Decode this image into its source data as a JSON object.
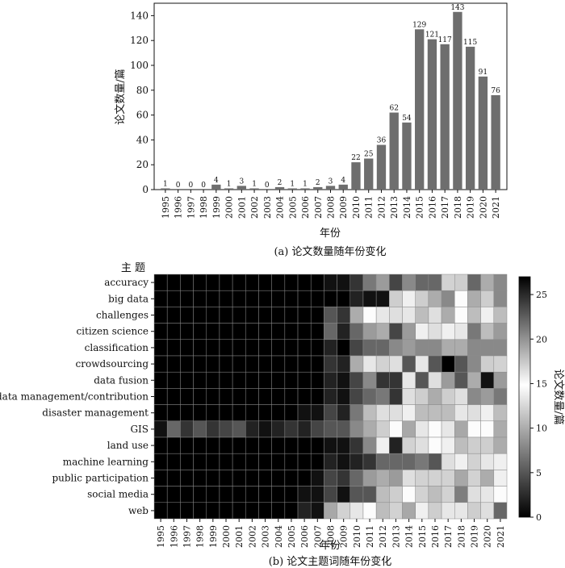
{
  "chart_data": [
    {
      "type": "bar",
      "title": "(a) 论文数量随年份变化",
      "xlabel": "年份",
      "ylabel": "论文数量/篇",
      "ylim": [
        0,
        150
      ],
      "yticks": [
        0,
        20,
        40,
        60,
        80,
        100,
        120,
        140
      ],
      "categories": [
        "1995",
        "1996",
        "1997",
        "1998",
        "1999",
        "2000",
        "2001",
        "2002",
        "2003",
        "2004",
        "2005",
        "2006",
        "2007",
        "2008",
        "2009",
        "2010",
        "2011",
        "2012",
        "2013",
        "2014",
        "2015",
        "2016",
        "2017",
        "2018",
        "2019",
        "2020",
        "2021"
      ],
      "values": [
        1,
        0,
        0,
        0,
        4,
        1,
        3,
        1,
        0,
        2,
        1,
        1,
        2,
        3,
        4,
        22,
        25,
        36,
        62,
        54,
        129,
        121,
        117,
        143,
        115,
        91,
        76
      ],
      "bar_color": "#6e6e6e"
    },
    {
      "type": "heatmap",
      "title": "(b) 论文主题词随年份变化",
      "xlabel": "年份",
      "row_header": "主 题",
      "colorbar_label": "论文数量/篇",
      "value_range": [
        0,
        27
      ],
      "colorbar_ticks": [
        0,
        5,
        10,
        15,
        20,
        25
      ],
      "colormap": "gray",
      "x": [
        "1995",
        "1996",
        "1997",
        "1998",
        "1999",
        "2000",
        "2001",
        "2002",
        "2003",
        "2004",
        "2005",
        "2006",
        "2007",
        "2008",
        "2009",
        "2010",
        "2011",
        "2012",
        "2013",
        "2014",
        "2015",
        "2016",
        "2017",
        "2018",
        "2019",
        "2020",
        "2021"
      ],
      "rows": [
        "accuracy",
        "big data",
        "challenges",
        "citizen science",
        "classification",
        "crowdsourcing",
        "data fusion",
        "data management/contribution",
        "disaster management",
        "GIS",
        "land use",
        "machine learning",
        "public participation",
        "social media",
        "web"
      ],
      "values": [
        [
          0,
          0,
          0,
          0,
          0,
          0,
          0,
          0,
          0,
          0,
          0,
          0,
          0,
          1,
          1,
          3,
          7,
          9,
          4,
          8,
          6,
          6,
          17,
          12,
          6,
          10,
          8
        ],
        [
          0,
          0,
          0,
          0,
          0,
          0,
          0,
          0,
          0,
          0,
          0,
          0,
          0,
          0,
          0,
          2,
          1,
          1,
          12,
          14,
          12,
          10,
          8,
          15,
          10,
          12,
          8
        ],
        [
          0,
          0,
          0,
          0,
          0,
          0,
          0,
          0,
          0,
          0,
          0,
          0,
          0,
          5,
          3,
          10,
          15,
          16,
          13,
          16,
          18,
          13,
          10,
          15,
          18,
          14,
          18
        ],
        [
          0,
          0,
          0,
          0,
          0,
          0,
          0,
          0,
          0,
          0,
          0,
          0,
          0,
          6,
          2,
          6,
          9,
          10,
          4,
          9,
          14,
          13,
          14,
          16,
          7,
          11,
          9
        ],
        [
          0,
          0,
          0,
          0,
          0,
          0,
          0,
          0,
          0,
          0,
          0,
          0,
          0,
          2,
          0,
          4,
          6,
          6,
          8,
          9,
          8,
          8,
          10,
          10,
          8,
          8,
          8
        ],
        [
          0,
          0,
          0,
          0,
          0,
          0,
          0,
          0,
          0,
          0,
          0,
          0,
          0,
          3,
          2,
          10,
          16,
          17,
          13,
          5,
          16,
          5,
          0,
          5,
          8,
          12,
          17
        ],
        [
          0,
          0,
          0,
          0,
          0,
          0,
          0,
          0,
          0,
          0,
          0,
          0,
          0,
          2,
          1,
          4,
          8,
          3,
          3,
          16,
          5,
          13,
          9,
          5,
          10,
          1,
          9
        ],
        [
          0,
          0,
          0,
          0,
          0,
          0,
          0,
          0,
          0,
          0,
          0,
          0,
          0,
          2,
          1,
          4,
          6,
          7,
          3,
          13,
          12,
          10,
          12,
          13,
          8,
          9,
          7
        ],
        [
          0,
          0,
          0,
          0,
          0,
          0,
          0,
          0,
          0,
          0,
          0,
          1,
          1,
          4,
          2,
          7,
          11,
          13,
          13,
          14,
          18,
          18,
          18,
          16,
          13,
          14,
          11
        ],
        [
          1,
          6,
          3,
          5,
          3,
          4,
          5,
          2,
          1,
          2,
          3,
          2,
          4,
          5,
          5,
          8,
          10,
          12,
          15,
          19,
          16,
          15,
          16,
          19,
          15,
          15,
          10
        ],
        [
          0,
          0,
          0,
          0,
          0,
          0,
          0,
          0,
          0,
          0,
          0,
          0,
          0,
          1,
          1,
          3,
          8,
          14,
          2,
          17,
          13,
          15,
          14,
          11,
          12,
          12,
          10
        ],
        [
          0,
          0,
          0,
          0,
          0,
          0,
          0,
          0,
          0,
          0,
          0,
          0,
          0,
          2,
          1,
          2,
          3,
          6,
          6,
          6,
          7,
          5,
          13,
          14,
          17,
          16,
          14
        ],
        [
          0,
          0,
          0,
          0,
          0,
          0,
          0,
          0,
          0,
          0,
          0,
          0,
          1,
          4,
          3,
          6,
          9,
          10,
          9,
          13,
          17,
          17,
          17,
          19,
          17,
          10,
          14
        ],
        [
          0,
          0,
          0,
          0,
          0,
          0,
          0,
          0,
          0,
          0,
          0,
          1,
          1,
          4,
          1,
          5,
          5,
          11,
          12,
          15,
          17,
          11,
          17,
          21,
          13,
          16,
          15
        ],
        [
          0,
          0,
          0,
          0,
          0,
          0,
          0,
          0,
          0,
          0,
          0,
          2,
          1,
          19,
          17,
          16,
          15,
          18,
          17,
          19,
          14,
          12,
          16,
          16,
          12,
          13,
          6
        ]
      ]
    }
  ]
}
